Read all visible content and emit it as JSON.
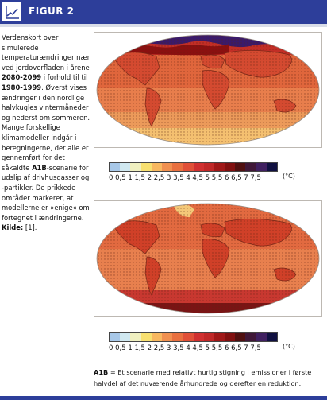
{
  "header": {
    "title": "FIGUR 2",
    "icon": "line-chart-icon",
    "bg_color": "#2d3e9a"
  },
  "caption": {
    "part1": "Verdenskort over simulerede temperaturændringer nær ved jordoverfladen i årene ",
    "bold1": "2080-2099",
    "part2": " i forhold til til ",
    "bold2": "1980-1999",
    "part3": ". Øverst vises ændringer i den nordlige halvkugles vintermåneder og nederst om sommeren. Mange forskellige klimamodeller indgår i beregningerne, der alle er gennemført for det såkaldte ",
    "bold3": "A1B",
    "part4": "-scenarie for udslip af drivhusgasser og -partikler. De prikkede områder markerer, at modellerne er »enige« om fortegnet i ændringerne. ",
    "bold4": "Kilde:",
    "part5": " [1]."
  },
  "scale": {
    "labels": "0 0,5 1 1,5 2 2,5 3 3,5 4 4,5 5 5,5 6 6,5 7 7,5",
    "unit": "(°C)",
    "colors": [
      "#a8c8e8",
      "#d0e8f0",
      "#f0f0c0",
      "#f8e070",
      "#f8b860",
      "#f09050",
      "#e87040",
      "#e05038",
      "#d03030",
      "#c02828",
      "#a01818",
      "#801010",
      "#501010",
      "#401838",
      "#402060",
      "#101040"
    ]
  },
  "footnote": {
    "bold": "A1B",
    "text": " = Et scenarie med relativt hurtig stigning i emissioner i første halvdel af det nuværende århundrede og derefter en reduktion."
  }
}
